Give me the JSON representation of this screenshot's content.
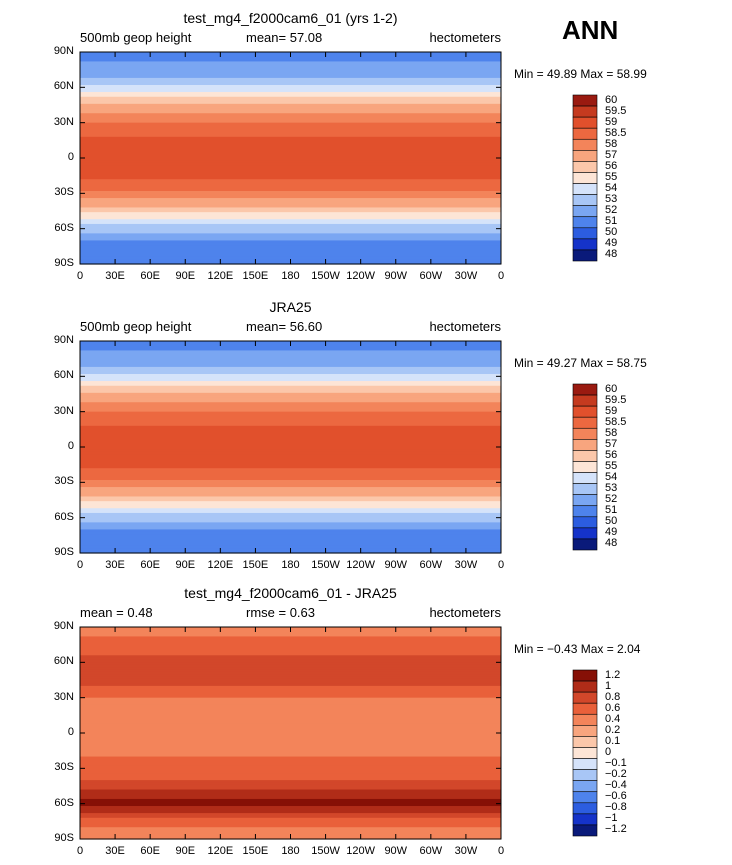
{
  "season": "ANN",
  "colors": {
    "abs_scale": [
      "#0a1a7a",
      "#1533c9",
      "#2c5de0",
      "#4e83ec",
      "#7aa6f2",
      "#a8c6f6",
      "#d5e3fa",
      "#fde5d6",
      "#fbc7aa",
      "#f8a57e",
      "#f3845a",
      "#ec6840",
      "#e1502c",
      "#c53a1f",
      "#9a1a10"
    ],
    "diff_scale": [
      "#0a1a7a",
      "#1533c9",
      "#2c5de0",
      "#4e83ec",
      "#7aa6f2",
      "#a8c6f6",
      "#d5e3fa",
      "#fde5d6",
      "#fbc7aa",
      "#f8a57e",
      "#f3845a",
      "#e9603a",
      "#d2472a",
      "#b02c18",
      "#861006"
    ]
  },
  "panels": [
    {
      "title": "test_mg4_f2000cam6_01 (yrs 1-2)",
      "left_label": "500mb geop height",
      "mid_label": "mean=   57.08",
      "units": "hectometers",
      "min_max": "Min =   49.89  Max =   58.99",
      "colorbar_labels": [
        "60",
        "59.5",
        "59",
        "58.5",
        "58",
        "57",
        "56",
        "55",
        "54",
        "53",
        "52",
        "51",
        "50",
        "49",
        "48"
      ]
    },
    {
      "title": "JRA25",
      "left_label": "500mb geop height",
      "mid_label": "mean=   56.60",
      "units": "hectometers",
      "min_max": "Min =   49.27  Max =   58.75",
      "colorbar_labels": [
        "60",
        "59.5",
        "59",
        "58.5",
        "58",
        "57",
        "56",
        "55",
        "54",
        "53",
        "52",
        "51",
        "50",
        "49",
        "48"
      ]
    },
    {
      "title": "test_mg4_f2000cam6_01 - JRA25",
      "left_label": "mean =     0.48",
      "mid_label": "rmse =     0.63",
      "units": "hectometers",
      "min_max": "Min =   −0.43  Max =     2.04",
      "colorbar_labels": [
        "1.2",
        "1",
        "0.8",
        "0.6",
        "0.4",
        "0.2",
        "0.1",
        "0",
        "−0.1",
        "−0.2",
        "−0.4",
        "−0.6",
        "−0.8",
        "−1",
        "−1.2"
      ]
    }
  ],
  "chart_data": {
    "type": "heatmap",
    "x_ticks": [
      "0",
      "30E",
      "60E",
      "90E",
      "120E",
      "150E",
      "180",
      "150W",
      "120W",
      "90W",
      "60W",
      "30W",
      "0"
    ],
    "y_ticks": [
      "90N",
      "60N",
      "30N",
      "0",
      "30S",
      "60S",
      "90S"
    ],
    "xlim": [
      0,
      360
    ],
    "ylim": [
      -90,
      90
    ],
    "abs_levels": [
      48,
      49,
      50,
      51,
      52,
      53,
      54,
      55,
      56,
      57,
      58,
      58.5,
      59,
      59.5,
      60
    ],
    "diff_levels": [
      -1.2,
      -1,
      -0.8,
      -0.6,
      -0.4,
      -0.2,
      -0.1,
      0,
      0.1,
      0.2,
      0.4,
      0.6,
      0.8,
      1,
      1.2
    ],
    "abs_profile": [
      {
        "lat": 90,
        "value": 50.5
      },
      {
        "lat": 70,
        "value": 51.8
      },
      {
        "lat": 60,
        "value": 53.2
      },
      {
        "lat": 45,
        "value": 56.2
      },
      {
        "lat": 30,
        "value": 58.1
      },
      {
        "lat": 15,
        "value": 58.6
      },
      {
        "lat": 0,
        "value": 58.6
      },
      {
        "lat": -15,
        "value": 58.6
      },
      {
        "lat": -25,
        "value": 58.3
      },
      {
        "lat": -40,
        "value": 56.3
      },
      {
        "lat": -55,
        "value": 53.2
      },
      {
        "lat": -70,
        "value": 51.0
      },
      {
        "lat": -90,
        "value": 50.2
      }
    ],
    "diff_profile": [
      {
        "lat": 90,
        "value": 0.3
      },
      {
        "lat": 65,
        "value": 0.6
      },
      {
        "lat": 45,
        "value": 0.7
      },
      {
        "lat": 30,
        "value": 0.4
      },
      {
        "lat": 15,
        "value": 0.3
      },
      {
        "lat": 0,
        "value": 0.3
      },
      {
        "lat": -20,
        "value": 0.4
      },
      {
        "lat": -40,
        "value": 0.6
      },
      {
        "lat": -60,
        "value": 1.1
      },
      {
        "lat": -75,
        "value": 0.5
      },
      {
        "lat": -90,
        "value": 0.2
      }
    ]
  }
}
